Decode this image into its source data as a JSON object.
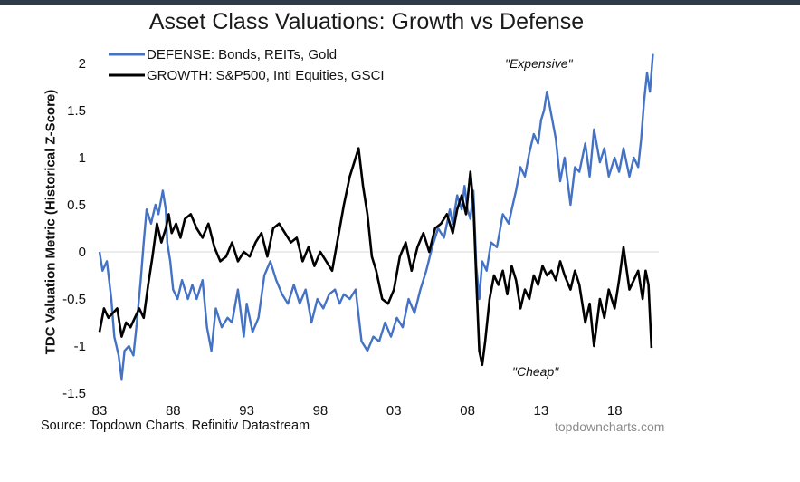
{
  "chart_data": {
    "type": "line",
    "title": "Asset Class Valuations: Growth vs Defense",
    "ylabel": "TDC Valuation Metric (Historical Z-Score)",
    "xlabel": "",
    "ylim": [
      -1.5,
      2.2
    ],
    "xlim": [
      1983,
      2021
    ],
    "yticks": [
      "2",
      "1.5",
      "1",
      "0.5",
      "0",
      "-0.5",
      "-1",
      "-1.5"
    ],
    "xticks": [
      "83",
      "88",
      "93",
      "98",
      "03",
      "08",
      "13",
      "18"
    ],
    "legend_position": "top-left",
    "annotations": [
      "\"Expensive\"",
      "\"Cheap\""
    ],
    "series": [
      {
        "name": "DEFENSE: Bonds, REITs, Gold",
        "color": "#4472c4",
        "x": [
          1983.0,
          1983.2,
          1983.5,
          1983.8,
          1984.0,
          1984.3,
          1984.5,
          1984.7,
          1985.0,
          1985.3,
          1985.5,
          1985.8,
          1986.0,
          1986.2,
          1986.5,
          1986.8,
          1987.0,
          1987.3,
          1987.5,
          1987.6,
          1987.8,
          1988.0,
          1988.3,
          1988.6,
          1989.0,
          1989.3,
          1989.6,
          1990.0,
          1990.3,
          1990.6,
          1990.9,
          1991.3,
          1991.7,
          1992.0,
          1992.4,
          1992.8,
          1993.0,
          1993.4,
          1993.8,
          1994.2,
          1994.6,
          1995.0,
          1995.4,
          1995.8,
          1996.2,
          1996.6,
          1997.0,
          1997.4,
          1997.8,
          1998.2,
          1998.6,
          1999.0,
          1999.3,
          1999.6,
          2000.0,
          2000.4,
          2000.8,
          2001.2,
          2001.6,
          2002.0,
          2002.4,
          2002.8,
          2003.2,
          2003.6,
          2004.0,
          2004.4,
          2004.8,
          2005.2,
          2005.6,
          2006.0,
          2006.4,
          2006.8,
          2007.0,
          2007.3,
          2007.6,
          2007.8,
          2008.0,
          2008.2,
          2008.4,
          2008.6,
          2008.8,
          2009.0,
          2009.3,
          2009.6,
          2010.0,
          2010.4,
          2010.8,
          2011.0,
          2011.3,
          2011.6,
          2011.9,
          2012.2,
          2012.5,
          2012.8,
          2013.0,
          2013.2,
          2013.4,
          2013.7,
          2014.0,
          2014.3,
          2014.6,
          2015.0,
          2015.3,
          2015.6,
          2016.0,
          2016.3,
          2016.6,
          2017.0,
          2017.3,
          2017.6,
          2018.0,
          2018.3,
          2018.6,
          2019.0,
          2019.3,
          2019.6,
          2019.8,
          2020.0,
          2020.2,
          2020.4,
          2020.6
        ],
        "values": [
          0.0,
          -0.2,
          -0.1,
          -0.5,
          -0.9,
          -1.1,
          -1.35,
          -1.05,
          -1.0,
          -1.1,
          -0.8,
          -0.3,
          0.1,
          0.45,
          0.3,
          0.5,
          0.4,
          0.65,
          0.45,
          0.1,
          -0.1,
          -0.4,
          -0.5,
          -0.3,
          -0.5,
          -0.35,
          -0.5,
          -0.3,
          -0.8,
          -1.05,
          -0.6,
          -0.8,
          -0.7,
          -0.75,
          -0.4,
          -0.9,
          -0.55,
          -0.85,
          -0.7,
          -0.25,
          -0.1,
          -0.3,
          -0.45,
          -0.55,
          -0.35,
          -0.55,
          -0.4,
          -0.75,
          -0.5,
          -0.6,
          -0.45,
          -0.4,
          -0.55,
          -0.45,
          -0.5,
          -0.4,
          -0.95,
          -1.05,
          -0.9,
          -0.95,
          -0.75,
          -0.9,
          -0.7,
          -0.8,
          -0.5,
          -0.65,
          -0.4,
          -0.2,
          0.05,
          0.25,
          0.15,
          0.45,
          0.3,
          0.6,
          0.45,
          0.7,
          0.45,
          0.35,
          0.65,
          -0.15,
          -0.5,
          -0.1,
          -0.2,
          0.1,
          0.05,
          0.4,
          0.3,
          0.45,
          0.65,
          0.9,
          0.8,
          1.05,
          1.25,
          1.15,
          1.4,
          1.5,
          1.7,
          1.45,
          1.2,
          0.75,
          1.0,
          0.5,
          0.9,
          0.85,
          1.15,
          0.8,
          1.3,
          0.95,
          1.1,
          0.8,
          1.0,
          0.85,
          1.1,
          0.8,
          1.0,
          0.9,
          1.2,
          1.6,
          1.9,
          1.7,
          2.1
        ]
      },
      {
        "name": "GROWTH: S&P500, Intl Equities, GSCI",
        "color": "#000000",
        "x": [
          1983.0,
          1983.3,
          1983.6,
          1983.9,
          1984.2,
          1984.5,
          1984.8,
          1985.1,
          1985.4,
          1985.7,
          1986.0,
          1986.3,
          1986.6,
          1986.9,
          1987.2,
          1987.5,
          1987.7,
          1987.9,
          1988.2,
          1988.5,
          1988.8,
          1989.2,
          1989.6,
          1990.0,
          1990.4,
          1990.8,
          1991.2,
          1991.6,
          1992.0,
          1992.4,
          1992.8,
          1993.2,
          1993.6,
          1994.0,
          1994.4,
          1994.8,
          1995.2,
          1995.6,
          1996.0,
          1996.4,
          1996.8,
          1997.2,
          1997.6,
          1998.0,
          1998.4,
          1998.8,
          1999.2,
          1999.6,
          2000.0,
          2000.3,
          2000.6,
          2000.9,
          2001.2,
          2001.5,
          2001.8,
          2002.2,
          2002.6,
          2003.0,
          2003.4,
          2003.8,
          2004.2,
          2004.6,
          2005.0,
          2005.4,
          2005.8,
          2006.2,
          2006.6,
          2007.0,
          2007.3,
          2007.6,
          2007.9,
          2008.2,
          2008.4,
          2008.6,
          2008.8,
          2009.0,
          2009.2,
          2009.5,
          2009.8,
          2010.1,
          2010.4,
          2010.7,
          2011.0,
          2011.3,
          2011.6,
          2011.9,
          2012.2,
          2012.5,
          2012.8,
          2013.1,
          2013.4,
          2013.7,
          2014.0,
          2014.3,
          2014.6,
          2015.0,
          2015.3,
          2015.6,
          2016.0,
          2016.3,
          2016.6,
          2017.0,
          2017.3,
          2017.6,
          2018.0,
          2018.3,
          2018.6,
          2019.0,
          2019.3,
          2019.6,
          2019.9,
          2020.1,
          2020.3,
          2020.5
        ],
        "values": [
          -0.85,
          -0.6,
          -0.7,
          -0.65,
          -0.6,
          -0.9,
          -0.75,
          -0.8,
          -0.7,
          -0.6,
          -0.7,
          -0.35,
          -0.05,
          0.3,
          0.1,
          0.25,
          0.4,
          0.2,
          0.3,
          0.15,
          0.35,
          0.4,
          0.25,
          0.15,
          0.3,
          0.05,
          -0.1,
          -0.05,
          0.1,
          -0.1,
          0.0,
          -0.05,
          0.1,
          0.2,
          -0.05,
          0.25,
          0.3,
          0.2,
          0.1,
          0.15,
          -0.1,
          0.05,
          -0.15,
          0.0,
          -0.1,
          -0.2,
          0.15,
          0.5,
          0.8,
          0.95,
          1.1,
          0.7,
          0.4,
          -0.05,
          -0.2,
          -0.5,
          -0.55,
          -0.4,
          -0.05,
          0.1,
          -0.2,
          0.05,
          0.2,
          0.0,
          0.25,
          0.3,
          0.4,
          0.2,
          0.45,
          0.6,
          0.4,
          0.85,
          0.5,
          -0.3,
          -1.05,
          -1.2,
          -0.95,
          -0.5,
          -0.25,
          -0.35,
          -0.2,
          -0.45,
          -0.15,
          -0.3,
          -0.6,
          -0.4,
          -0.5,
          -0.25,
          -0.35,
          -0.15,
          -0.25,
          -0.2,
          -0.3,
          -0.1,
          -0.25,
          -0.4,
          -0.2,
          -0.35,
          -0.75,
          -0.55,
          -1.0,
          -0.5,
          -0.7,
          -0.4,
          -0.6,
          -0.3,
          0.05,
          -0.4,
          -0.3,
          -0.2,
          -0.5,
          -0.2,
          -0.35,
          -1.02
        ]
      }
    ]
  },
  "source_text": "Source: Topdown Charts, Refinitiv Datastream",
  "website_text": "topdowncharts.com"
}
